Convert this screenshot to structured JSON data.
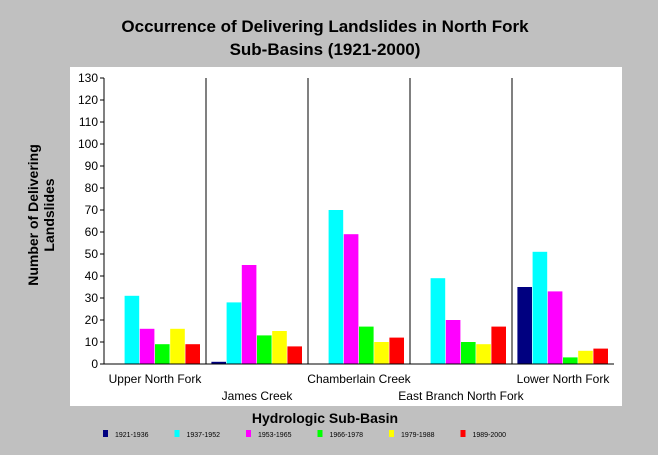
{
  "chart_data": {
    "type": "bar",
    "title_line1": "Occurrence of Delivering Landslides in North Fork",
    "title_line2": "Sub-Basins (1921-2000)",
    "ylabel_line1": "Number of Delivering",
    "ylabel_line2": "Landslides",
    "xlabel": "Hydrologic Sub-Basin",
    "ylim": [
      0,
      130
    ],
    "yticks": [
      0,
      10,
      20,
      30,
      40,
      50,
      60,
      70,
      80,
      90,
      100,
      110,
      120,
      130
    ],
    "categories": [
      "Upper North Fork",
      "James Creek",
      "Chamberlain Creek",
      "East Branch North Fork",
      "Lower North Fork"
    ],
    "series": [
      {
        "name": "1921-1936",
        "color": "#000080",
        "values": [
          0,
          1,
          0,
          0,
          35
        ]
      },
      {
        "name": "1937-1952",
        "color": "#00ffff",
        "values": [
          31,
          28,
          70,
          39,
          51
        ]
      },
      {
        "name": "1953-1965",
        "color": "#ff00ff",
        "values": [
          16,
          45,
          59,
          20,
          33
        ]
      },
      {
        "name": "1966-1978",
        "color": "#00ff00",
        "values": [
          9,
          13,
          17,
          10,
          3
        ]
      },
      {
        "name": "1979-1988",
        "color": "#ffff00",
        "values": [
          16,
          15,
          10,
          9,
          6
        ]
      },
      {
        "name": "1989-2000",
        "color": "#ff0000",
        "values": [
          9,
          8,
          12,
          17,
          7
        ]
      }
    ],
    "grid": false,
    "legend_position": "bottom"
  }
}
